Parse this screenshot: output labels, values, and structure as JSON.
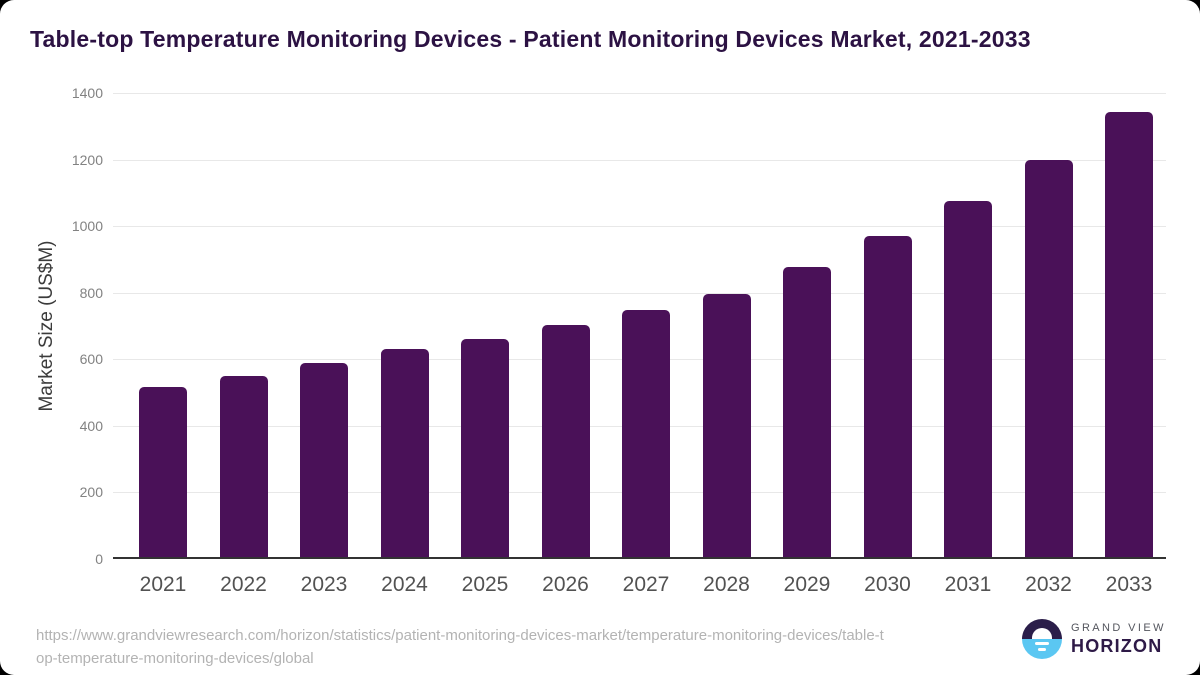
{
  "title": "Table-top Temperature Monitoring Devices - Patient Monitoring Devices Market, 2021-2033",
  "chart_data": {
    "type": "bar",
    "categories": [
      "2021",
      "2022",
      "2023",
      "2024",
      "2025",
      "2026",
      "2027",
      "2028",
      "2029",
      "2030",
      "2031",
      "2032",
      "2033"
    ],
    "values": [
      517,
      550,
      589,
      631,
      662,
      703,
      748,
      797,
      877,
      970,
      1075,
      1198,
      1343
    ],
    "title": "Table-top Temperature Monitoring Devices - Patient Monitoring Devices Market, 2021-2033",
    "xlabel": "",
    "ylabel": "Market Size (US$M)",
    "ylim": [
      0,
      1400
    ],
    "ytick_step": 200,
    "grid": true,
    "legend": "none",
    "bar_color": "#4a1158"
  },
  "colors": {
    "title": "#2c1243",
    "bar": "#4a1158",
    "gridline": "#e8e8e8",
    "axis_line": "#333333",
    "ytick_label": "#828282",
    "xtick_label": "#525252",
    "url_text": "#b3b3b3",
    "logo_dark": "#2b1e4a",
    "logo_blue": "#5bc7f2"
  },
  "footer": {
    "url_lines": [
      "https://www.grandviewresearch.com/horizon/statistics/patient-monitoring-devices-market/temperature-monitoring-devices/table-t",
      "op-temperature-monitoring-devices/global"
    ],
    "logo": {
      "top_text": "GRAND VIEW",
      "bottom_text": "HORIZON"
    }
  }
}
